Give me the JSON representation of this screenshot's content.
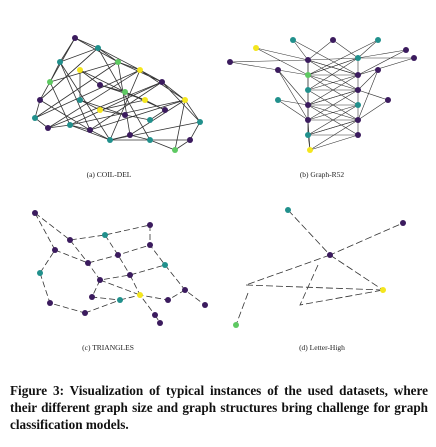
{
  "figure": {
    "panels": [
      {
        "id": "a",
        "label": "(a) COIL-DEL"
      },
      {
        "id": "b",
        "label": "(b) Graph-R52"
      },
      {
        "id": "c",
        "label": "(c) TRIANGLES"
      },
      {
        "id": "d",
        "label": "(d) Letter-High"
      }
    ],
    "caption": "Figure 3: Visualization of typical instances of the used datasets, where their different graph size and graph structures bring challenge for graph classification models."
  },
  "colors": {
    "purple": "#3b1b5e",
    "teal": "#21908c",
    "yellow": "#f4e61e",
    "green": "#5ec962",
    "edge": "#333333"
  }
}
